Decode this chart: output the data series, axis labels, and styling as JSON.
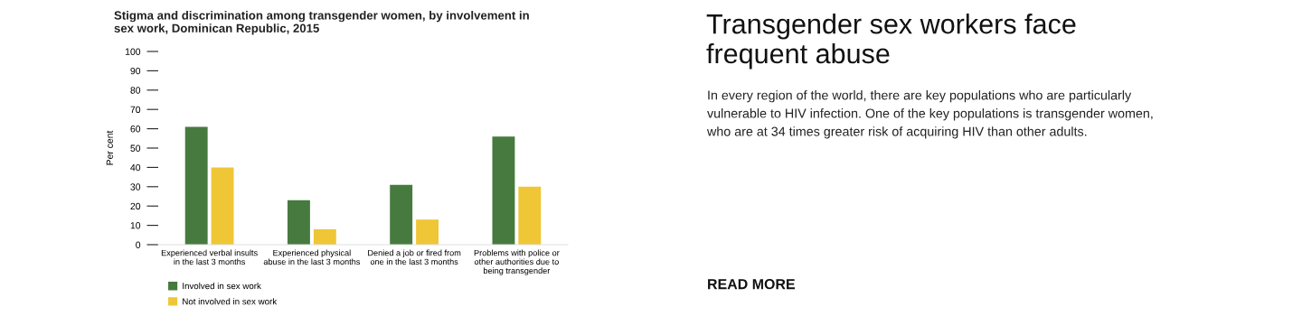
{
  "chart_data": [
    {
      "type": "bar",
      "title": "Stigma and discrimination among transgender women, by involvement in\nsex work, Dominican Republic, 2015",
      "ylabel": "Per cent",
      "categories": [
        "Experienced verbal insults\nin the last 3 months",
        "Experienced physical\nabuse in the last 3 months",
        "Denied a job or fired from\none in the last 3 months",
        "Problems with police or\nother authorities due to\nbeing transgender"
      ],
      "series": [
        {
          "name": "Involved in sex work",
          "color": "#477a3f",
          "values": [
            61,
            23,
            31,
            56
          ]
        },
        {
          "name": "Not involved in sex work",
          "color": "#efc636",
          "values": [
            40,
            8,
            13,
            30
          ]
        }
      ],
      "ylim": [
        0,
        100
      ],
      "yticks": [
        0,
        10,
        20,
        30,
        40,
        50,
        60,
        70,
        80,
        90,
        100
      ],
      "grid": false,
      "legend": "bottom left"
    },
    {
      "type": "other",
      "title": "Transgender sex workers face\nfrequent abuse",
      "annotations": [
        "In every region of the world, there are key populations who are particularly\nvulnerable to HIV infection. One of the key populations is transgender women,\nwho are at 34 times greater risk of acquiring HIV than other adults.",
        "READ MORE"
      ]
    }
  ]
}
